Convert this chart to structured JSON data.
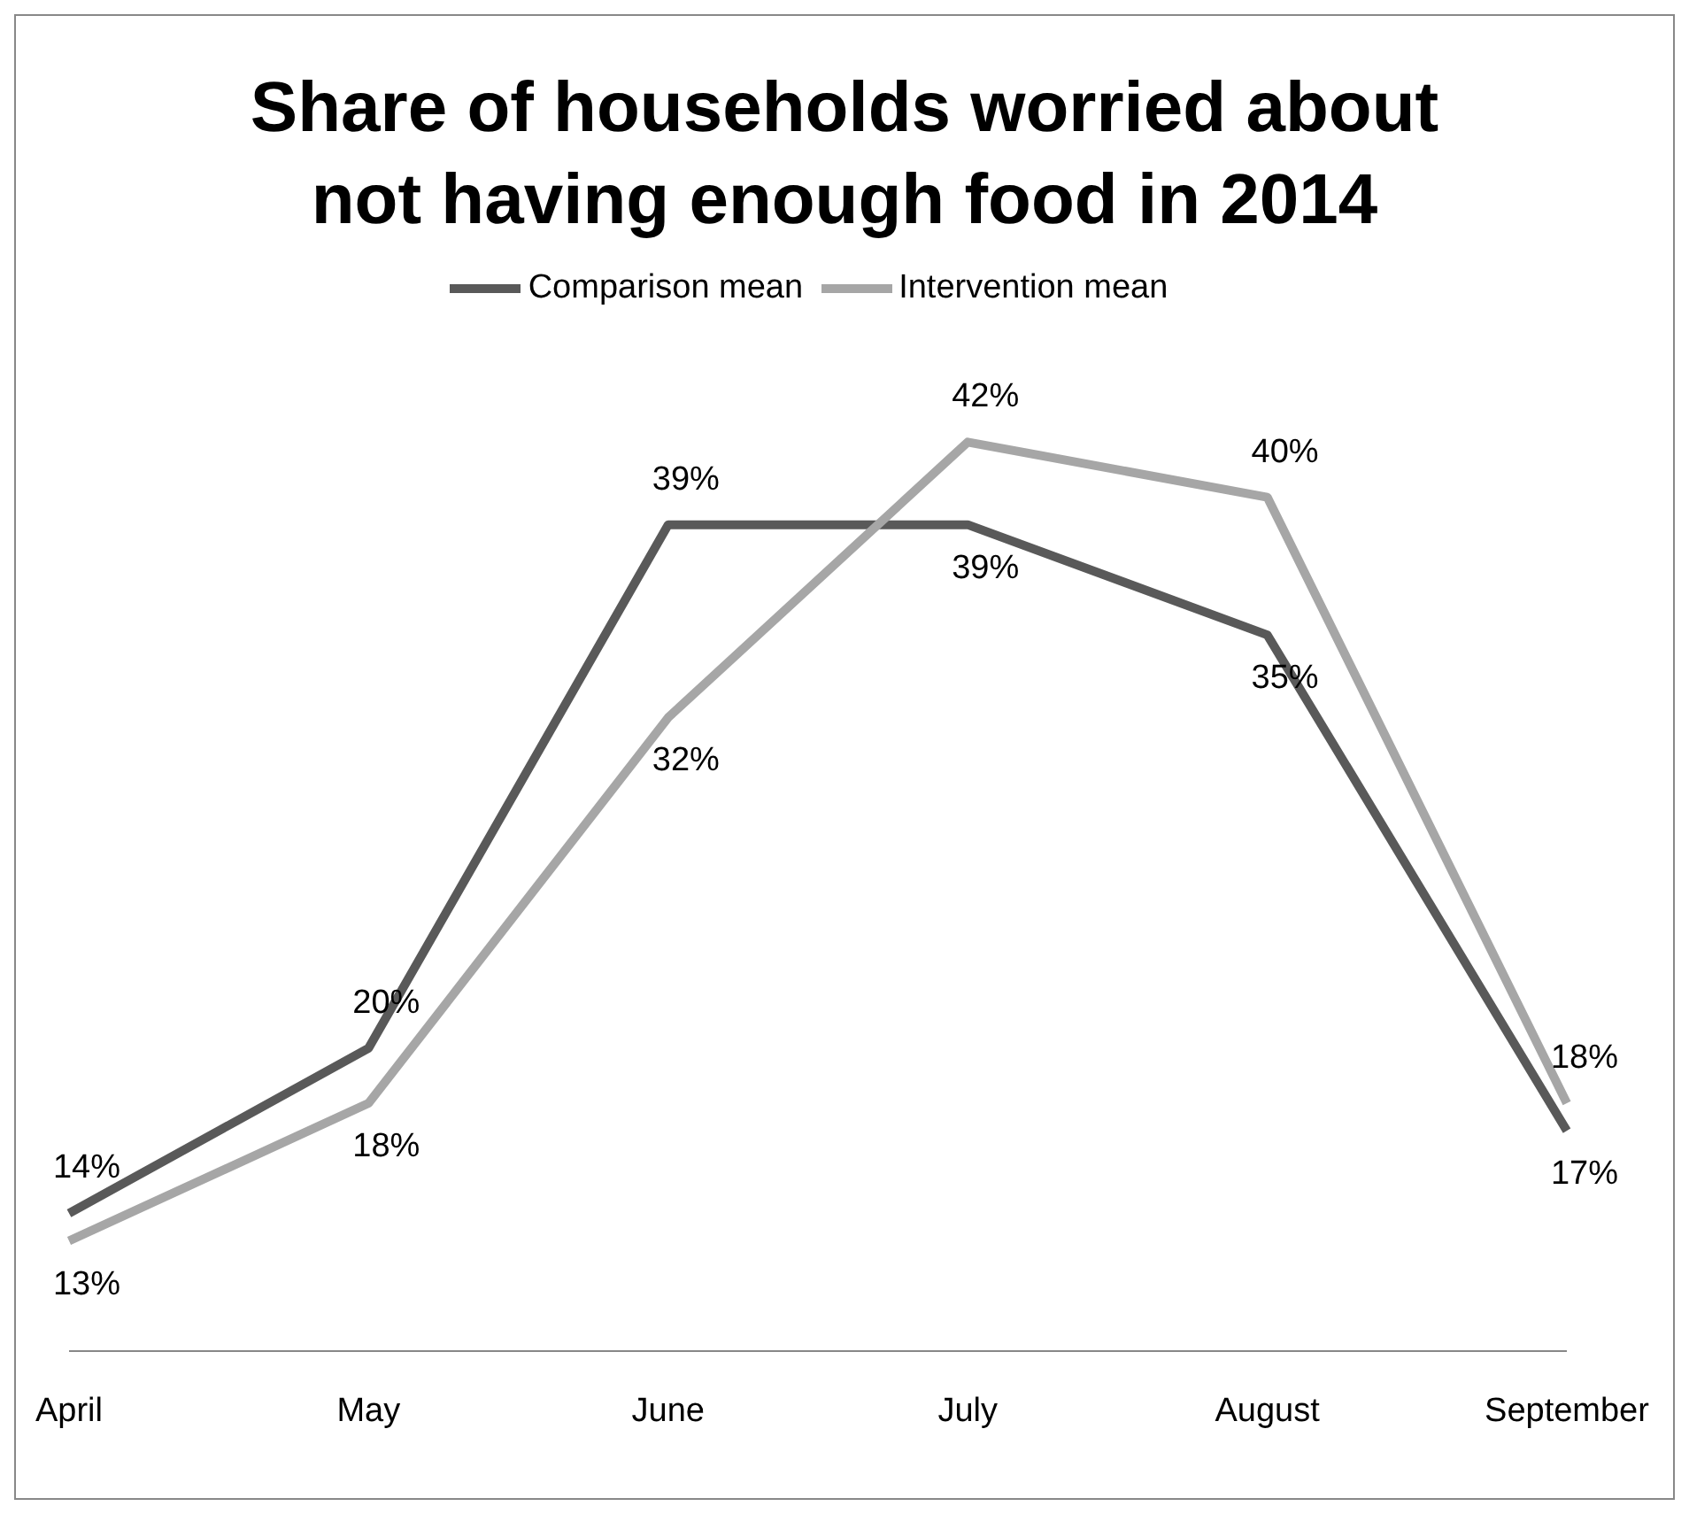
{
  "chart_data": {
    "type": "line",
    "title": "Share of households worried about not having enough food in 2014",
    "categories": [
      "April",
      "May",
      "June",
      "July",
      "August",
      "September"
    ],
    "series": [
      {
        "name": "Comparison mean",
        "color": "#595959",
        "values": [
          14,
          20,
          39,
          39,
          35,
          17
        ],
        "value_labels": [
          "14%",
          "20%",
          "39%",
          "39%",
          "35%",
          "17%"
        ]
      },
      {
        "name": "Intervention mean",
        "color": "#a6a6a6",
        "values": [
          13,
          18,
          32,
          42,
          40,
          18
        ],
        "value_labels": [
          "13%",
          "18%",
          "32%",
          "42%",
          "40%",
          "18%"
        ]
      }
    ],
    "tick_labels": "x",
    "legend": "top",
    "grid": false,
    "marker": "none",
    "line_style": "solid"
  }
}
